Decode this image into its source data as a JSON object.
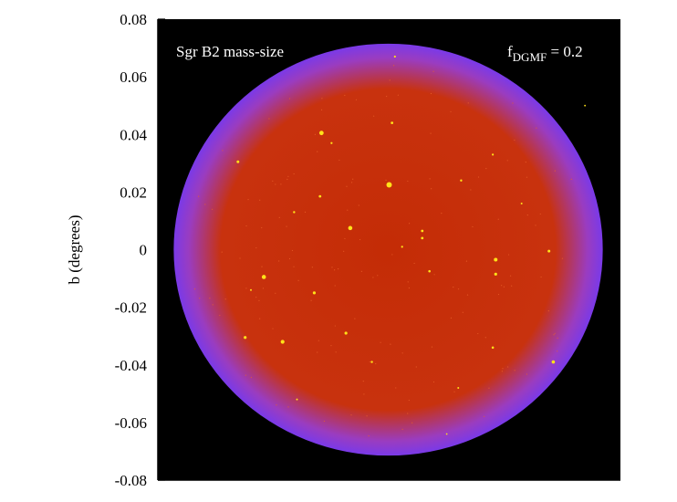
{
  "chart_data": {
    "type": "heatmap",
    "title": "Sgr B2 mass-size",
    "annotation": {
      "prefix": "f",
      "subscript": "DGMF",
      "suffix": " = 0.2"
    },
    "xlabel": "",
    "ylabel": "b (degrees)",
    "ylim": [
      -0.08,
      0.08
    ],
    "yticks": [
      0.08,
      0.06,
      0.04,
      0.02,
      0,
      -0.02,
      -0.04,
      -0.06,
      -0.08
    ],
    "ytick_labels": [
      "0.08",
      "0.06",
      "0.04",
      "0.02",
      "0",
      "-0.02",
      "-0.04",
      "-0.06",
      "-0.08"
    ],
    "grid": false,
    "colors": {
      "background": "#000000",
      "center": "#c42c06",
      "mid": "#c8320e",
      "edge": "#9a3cc0",
      "rim": "#7a3ae8",
      "source": "#ffe21a",
      "label": "#ffffff"
    },
    "region": {
      "center_b": 0.0,
      "radius_b_vertical": 0.0715,
      "radius_b_horizontal": 0.0745
    },
    "sources": [
      {
        "l": 0.0,
        "b": 0.0225,
        "size": 3.0
      },
      {
        "l": -0.0235,
        "b": 0.0405,
        "size": 2.4
      },
      {
        "l": -0.0135,
        "b": 0.0075,
        "size": 2.3
      },
      {
        "l": -0.0435,
        "b": -0.0095,
        "size": 2.3
      },
      {
        "l": -0.037,
        "b": -0.032,
        "size": 2.1
      },
      {
        "l": 0.037,
        "b": -0.0035,
        "size": 2.0
      },
      {
        "l": 0.057,
        "b": -0.039,
        "size": 1.8
      },
      {
        "l": -0.026,
        "b": -0.015,
        "size": 1.6
      },
      {
        "l": -0.015,
        "b": -0.029,
        "size": 1.6
      },
      {
        "l": -0.05,
        "b": -0.0305,
        "size": 1.6
      },
      {
        "l": 0.037,
        "b": -0.0085,
        "size": 1.6
      },
      {
        "l": 0.0555,
        "b": -0.0005,
        "size": 1.5
      },
      {
        "l": -0.0525,
        "b": 0.0305,
        "size": 1.5
      },
      {
        "l": 0.001,
        "b": 0.044,
        "size": 1.4
      },
      {
        "l": 0.0115,
        "b": 0.0065,
        "size": 1.4
      },
      {
        "l": 0.0115,
        "b": 0.004,
        "size": 1.4
      },
      {
        "l": -0.024,
        "b": 0.0185,
        "size": 1.4
      },
      {
        "l": 0.014,
        "b": -0.0075,
        "size": 1.3
      },
      {
        "l": 0.036,
        "b": -0.034,
        "size": 1.3
      },
      {
        "l": -0.006,
        "b": -0.039,
        "size": 1.2
      },
      {
        "l": 0.025,
        "b": 0.024,
        "size": 1.2
      },
      {
        "l": -0.033,
        "b": 0.013,
        "size": 1.2
      },
      {
        "l": 0.002,
        "b": 0.067,
        "size": 1.1
      },
      {
        "l": 0.036,
        "b": 0.033,
        "size": 1.1
      },
      {
        "l": 0.0045,
        "b": 0.001,
        "size": 1.1
      },
      {
        "l": -0.02,
        "b": 0.037,
        "size": 1.1
      },
      {
        "l": -0.048,
        "b": -0.014,
        "size": 1.0
      },
      {
        "l": 0.024,
        "b": -0.048,
        "size": 1.0
      },
      {
        "l": -0.032,
        "b": -0.052,
        "size": 1.0
      },
      {
        "l": 0.046,
        "b": 0.016,
        "size": 1.0
      },
      {
        "l": 0.068,
        "b": 0.05,
        "size": 0.9
      },
      {
        "l": 0.02,
        "b": -0.064,
        "size": 0.9
      }
    ]
  }
}
